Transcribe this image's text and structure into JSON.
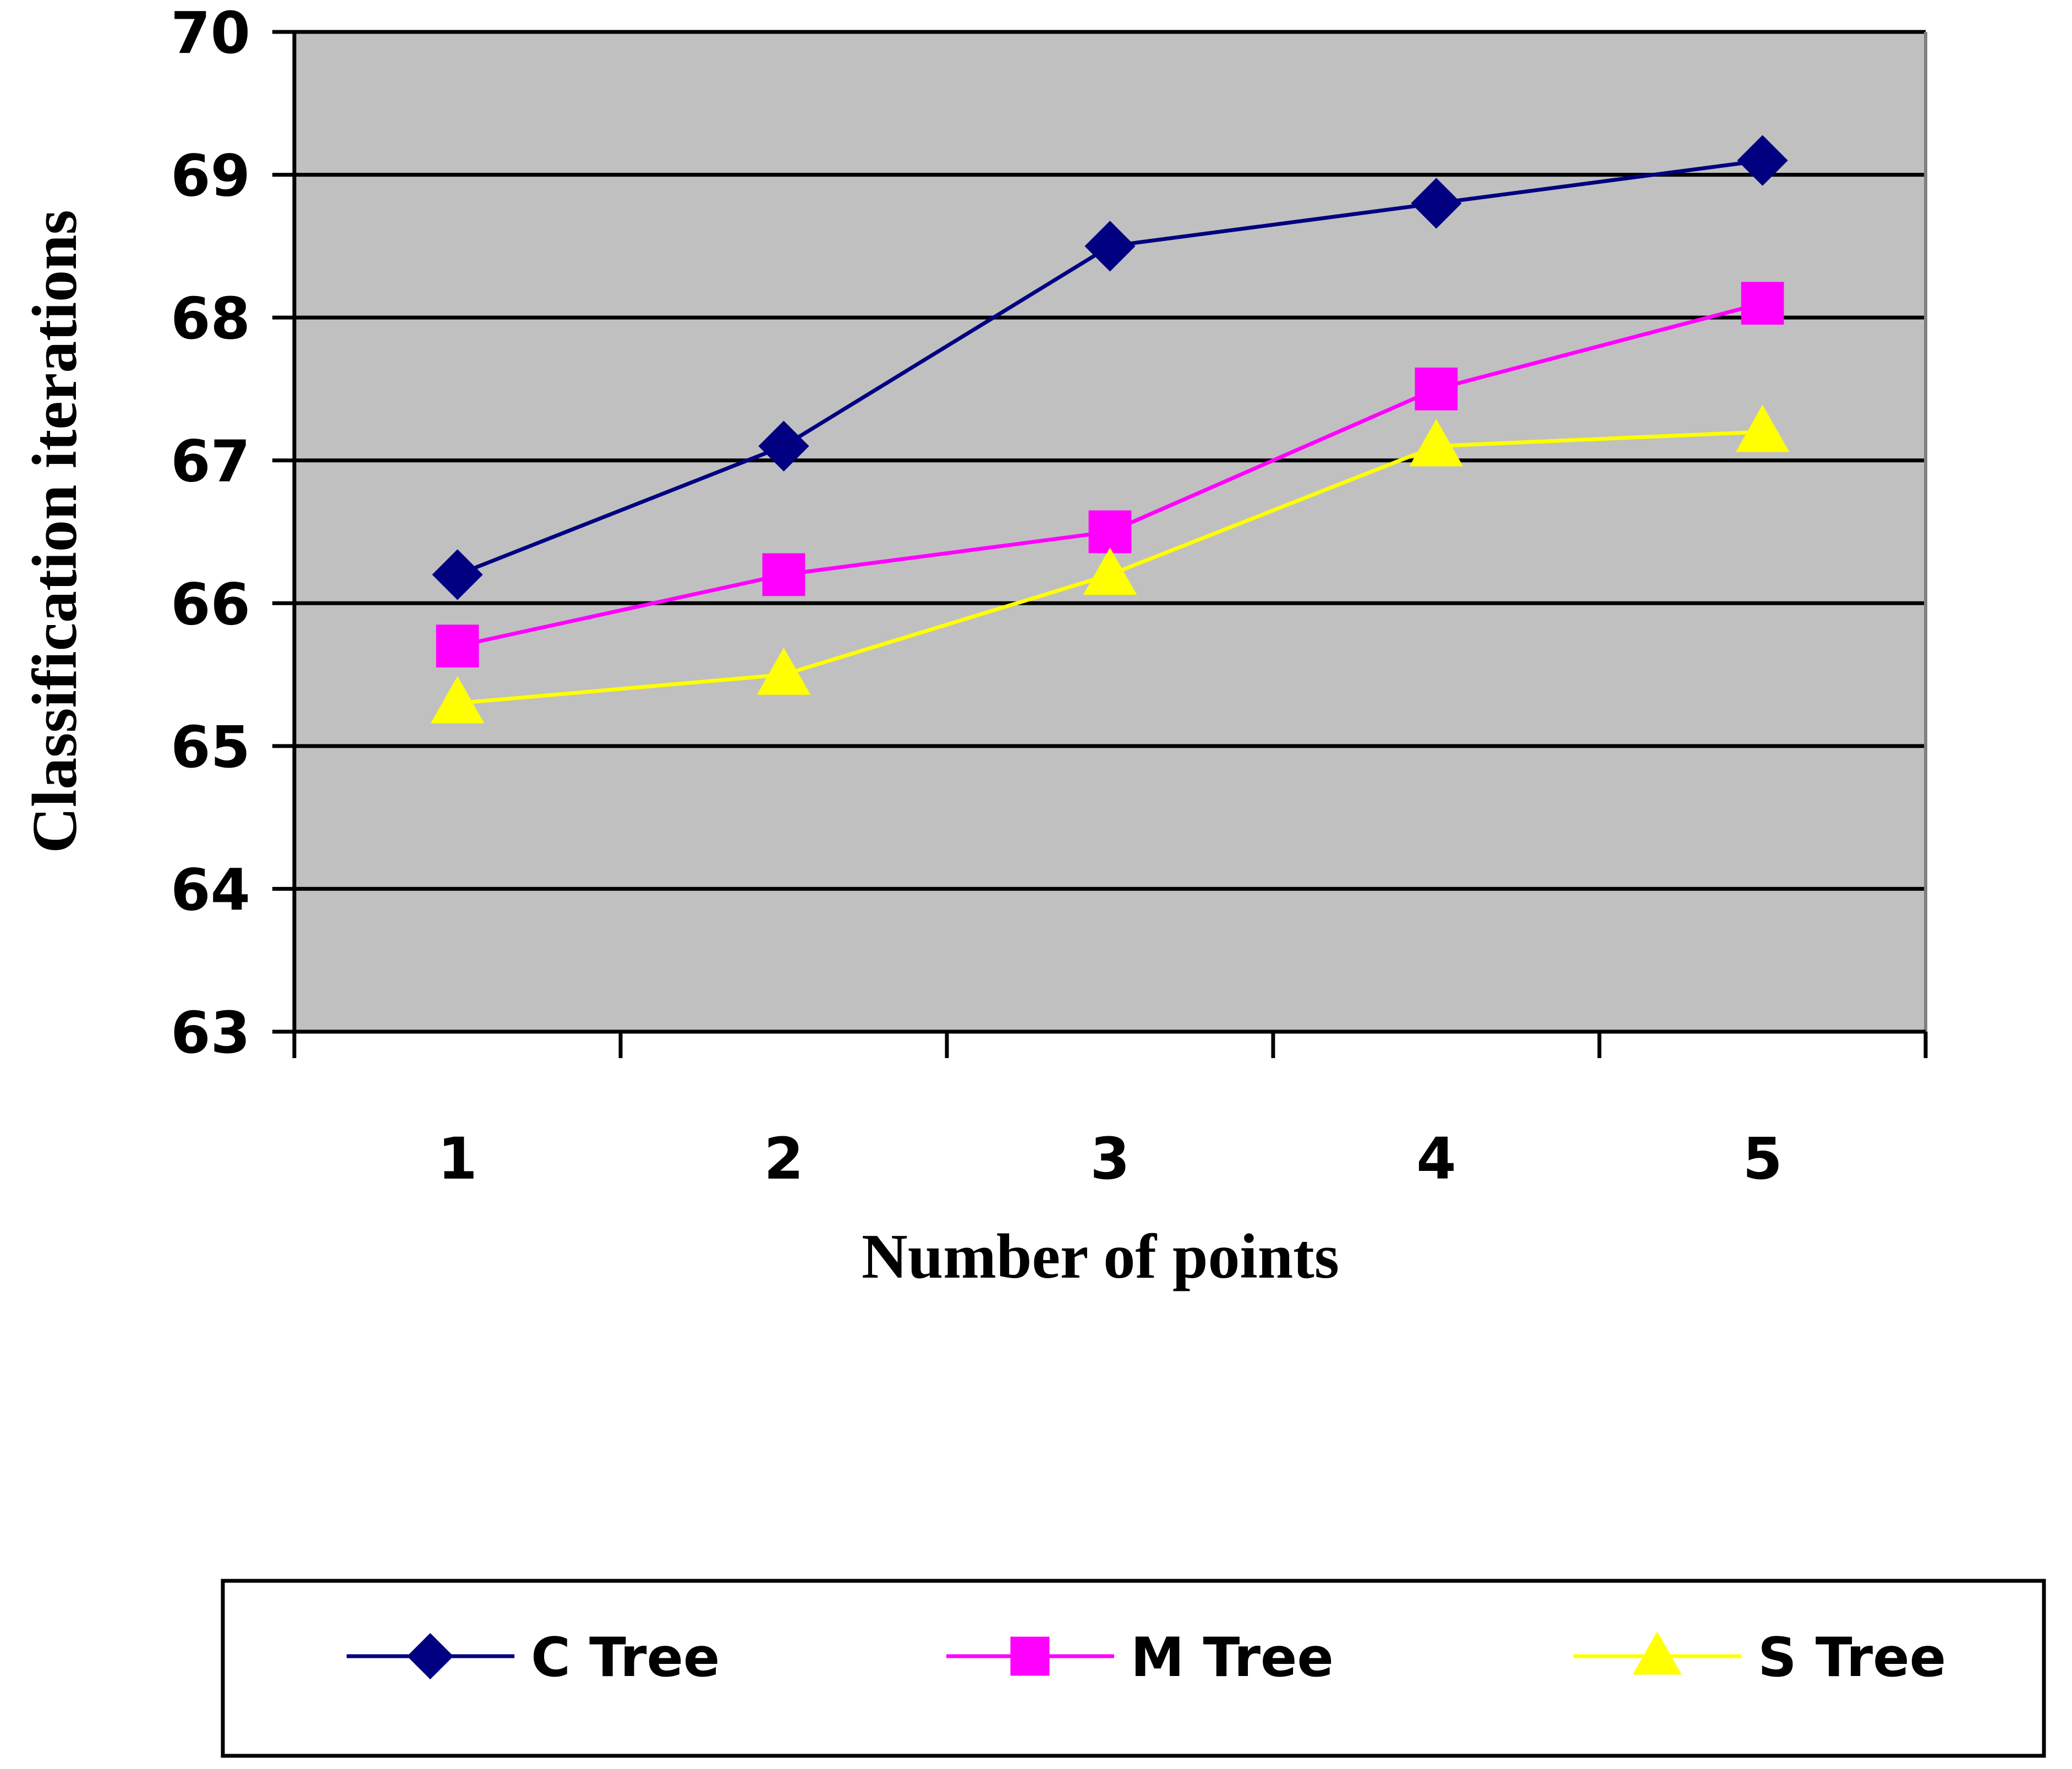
{
  "chart_data": {
    "type": "line",
    "xlabel": "Number of points",
    "ylabel": "Classification iterations",
    "categories": [
      "1",
      "2",
      "3",
      "4",
      "5"
    ],
    "ylim": [
      63,
      70
    ],
    "yticks": [
      "63",
      "64",
      "65",
      "66",
      "67",
      "68",
      "69",
      "70"
    ],
    "grid": true,
    "legend_position": "bottom",
    "background_color": "#c0c0c0",
    "series": [
      {
        "name": "C Tree",
        "values": [
          66.2,
          67.1,
          68.5,
          68.8,
          69.1
        ],
        "color": "#000080",
        "marker": "diamond"
      },
      {
        "name": "M Tree",
        "values": [
          65.7,
          66.2,
          66.5,
          67.5,
          68.1
        ],
        "color": "#ff00ff",
        "marker": "square"
      },
      {
        "name": "S Tree",
        "values": [
          65.3,
          65.5,
          66.2,
          67.1,
          67.2
        ],
        "color": "#ffff00",
        "marker": "triangle"
      }
    ]
  }
}
